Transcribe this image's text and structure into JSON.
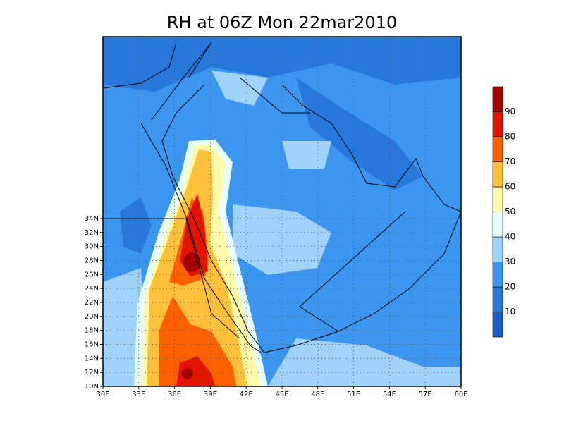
{
  "map": {
    "title": "RH at 06Z Mon 22mar2010",
    "lon_ticks": [
      "30E",
      "33E",
      "36E",
      "39E",
      "42E",
      "45E",
      "48E",
      "51E",
      "54E",
      "57E",
      "60E"
    ],
    "lat_ticks": [
      "10N",
      "12N",
      "14N",
      "16N",
      "18N",
      "20N",
      "22N",
      "24N",
      "26N",
      "28N",
      "30N",
      "32N",
      "34N"
    ],
    "colorbar": {
      "labels": [
        "10",
        "20",
        "30",
        "40",
        "50",
        "60",
        "70",
        "80",
        "90"
      ],
      "colors": [
        "#1e5ac8",
        "#2878dc",
        "#3c96f0",
        "#a0d2fa",
        "#e6ffff",
        "#fffaaa",
        "#ffc03c",
        "#ff6000",
        "#e11400",
        "#a50000"
      ]
    }
  }
}
